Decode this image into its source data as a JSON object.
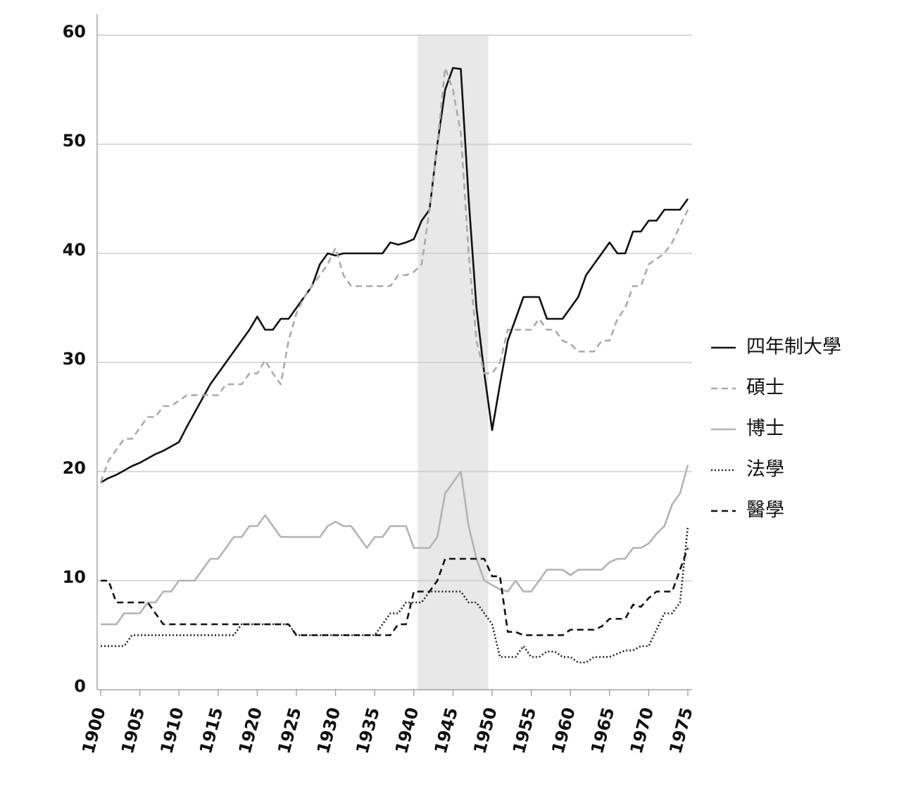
{
  "chart_data": {
    "type": "line",
    "x": [
      1900,
      1901,
      1902,
      1903,
      1904,
      1905,
      1906,
      1907,
      1908,
      1909,
      1910,
      1911,
      1912,
      1913,
      1914,
      1915,
      1916,
      1917,
      1918,
      1919,
      1920,
      1921,
      1922,
      1923,
      1924,
      1925,
      1926,
      1927,
      1928,
      1929,
      1930,
      1931,
      1932,
      1933,
      1934,
      1935,
      1936,
      1937,
      1938,
      1939,
      1940,
      1941,
      1942,
      1943,
      1944,
      1945,
      1946,
      1947,
      1948,
      1949,
      1950,
      1951,
      1952,
      1953,
      1954,
      1955,
      1956,
      1957,
      1958,
      1959,
      1960,
      1961,
      1962,
      1963,
      1964,
      1965,
      1966,
      1967,
      1968,
      1969,
      1970,
      1971,
      1972,
      1973,
      1974,
      1975
    ],
    "series": [
      {
        "name": "四年制大學",
        "color": "#111111",
        "dash": "solid",
        "values": [
          19,
          19.4,
          19.7,
          20.1,
          20.5,
          20.8,
          21.2,
          21.6,
          21.9,
          22.3,
          22.7,
          24.1,
          25.4,
          26.7,
          28,
          29,
          30,
          31,
          32,
          33,
          34.2,
          33,
          33,
          34,
          34,
          35,
          36,
          37,
          39,
          40,
          39.8,
          40,
          40,
          40,
          40,
          40,
          40,
          41,
          40.8,
          41,
          41.3,
          43,
          44,
          50,
          55,
          57,
          56.9,
          45,
          35,
          29,
          23.8,
          28,
          32,
          34,
          36,
          36,
          36,
          34,
          34,
          34,
          35,
          36,
          38,
          39,
          40,
          41,
          40,
          40,
          42,
          42,
          43,
          43,
          44,
          44,
          44,
          45
        ]
      },
      {
        "name": "碩士",
        "color": "#aaaaaa",
        "dash": "dashed",
        "values": [
          19,
          21,
          22,
          23,
          23,
          24,
          25,
          25,
          26,
          26,
          26.5,
          27,
          27,
          27,
          27,
          27,
          28,
          28,
          28,
          29,
          29,
          30.2,
          29,
          28,
          32,
          34.5,
          36,
          37,
          38,
          39,
          40.5,
          38,
          37,
          37,
          37,
          37,
          37,
          37,
          38,
          38,
          38.3,
          39,
          44,
          50,
          57,
          55,
          51,
          40,
          32,
          29,
          29,
          30,
          33,
          33,
          33,
          33,
          34,
          33,
          33,
          32,
          31.7,
          31,
          31,
          31,
          32,
          32,
          34,
          35,
          37,
          37,
          39,
          39.5,
          40,
          41,
          42.5,
          44
        ]
      },
      {
        "name": "博士",
        "color": "#b3b3b3",
        "dash": "solid",
        "values": [
          6,
          6,
          6,
          7,
          7,
          7,
          8,
          8,
          9,
          9,
          10,
          10,
          10,
          11,
          12,
          12,
          13,
          14,
          14,
          15,
          15,
          16,
          15,
          14,
          14,
          14,
          14,
          14,
          14,
          15,
          15.4,
          15,
          15,
          14,
          13,
          14,
          14,
          15,
          15,
          15,
          13,
          13,
          13,
          14,
          18,
          19,
          20,
          15,
          12,
          10,
          9.6,
          9.2,
          9,
          10,
          9,
          9,
          10,
          11,
          11,
          11,
          10.5,
          11,
          11,
          11,
          11,
          11.7,
          12,
          12,
          13,
          13,
          13.4,
          14.3,
          15,
          17,
          18,
          20.6
        ]
      },
      {
        "name": "法學",
        "color": "#222222",
        "dash": "dotted",
        "values": [
          4,
          4,
          4,
          4,
          5,
          5,
          5,
          5,
          5,
          5,
          5,
          5,
          5,
          5,
          5,
          5,
          5,
          5,
          6,
          6,
          6,
          6,
          6,
          6,
          6,
          5,
          5,
          5,
          5,
          5,
          5,
          5,
          5,
          5,
          5,
          5,
          6,
          7,
          7,
          8,
          8,
          8,
          9,
          9,
          9,
          9,
          9,
          8,
          8,
          7,
          6,
          3,
          3,
          3,
          4,
          3,
          3,
          3.5,
          3.5,
          3,
          3,
          2.5,
          2.5,
          3,
          3,
          3,
          3.3,
          3.6,
          3.6,
          4,
          4,
          5.5,
          7,
          7,
          8,
          15
        ]
      },
      {
        "name": "醫學",
        "color": "#111111",
        "dash": "dashed",
        "values": [
          10,
          10,
          8,
          8,
          8,
          8,
          8,
          7,
          6,
          6,
          6,
          6,
          6,
          6,
          6,
          6,
          6,
          6,
          6,
          6,
          6,
          6,
          6,
          6,
          6,
          5,
          5,
          5,
          5,
          5,
          5,
          5,
          5,
          5,
          5,
          5,
          5,
          5,
          6,
          6,
          9,
          9,
          9,
          10,
          12,
          12,
          12,
          12,
          12,
          12,
          10.4,
          10.4,
          5.3,
          5.3,
          5,
          5,
          5,
          5,
          5,
          5,
          5.5,
          5.5,
          5.5,
          5.5,
          5.8,
          6.5,
          6.5,
          6.5,
          7.8,
          7.6,
          8.4,
          9,
          9,
          9,
          11,
          13
        ]
      }
    ],
    "xlim": [
      1900,
      1975
    ],
    "xticks": [
      1900,
      1905,
      1910,
      1915,
      1920,
      1925,
      1930,
      1935,
      1940,
      1945,
      1950,
      1955,
      1960,
      1965,
      1970,
      1975
    ],
    "ylim": [
      0,
      60
    ],
    "yticks": [
      0,
      10,
      20,
      30,
      40,
      50,
      60
    ],
    "grid": true,
    "shaded_range": [
      1940.5,
      1949.5
    ],
    "shade_color": "#e8e8e8",
    "legend": "right"
  }
}
